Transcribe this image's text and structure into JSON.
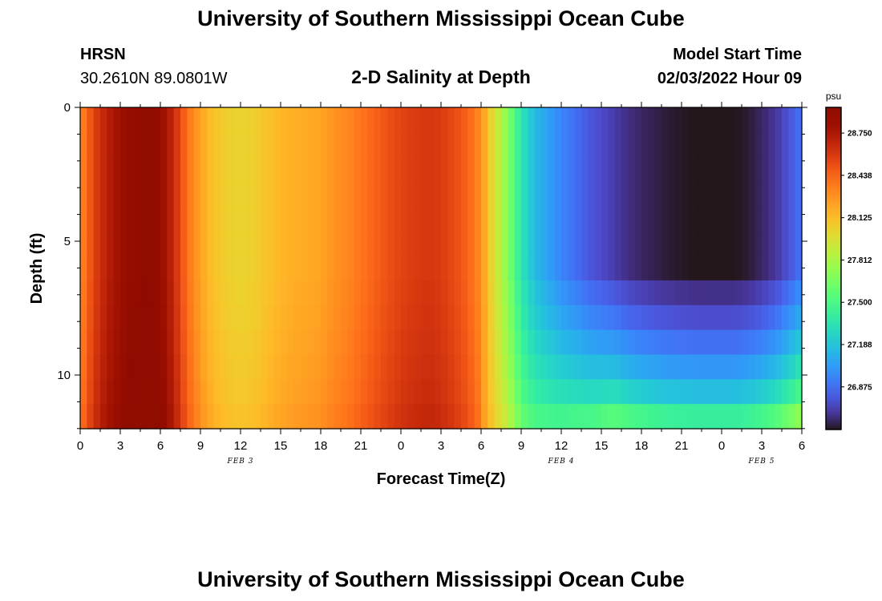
{
  "page": {
    "title_top": "University of Southern Mississippi Ocean Cube",
    "title_bottom": "University of Southern Mississippi Ocean Cube",
    "station": "HRSN",
    "coordinates": "30.2610N  89.0801W",
    "subtitle": "2-D Salinity at Depth",
    "model_start_label": "Model Start Time",
    "model_start_value": "02/03/2022 Hour 09"
  },
  "chart_data": {
    "type": "heatmap",
    "title": "2-D Salinity at Depth",
    "xlabel": "Forecast Time(Z)",
    "ylabel": "Depth (ft)",
    "x_tick_labels": [
      "0",
      "3",
      "6",
      "9",
      "12",
      "15",
      "18",
      "21",
      "0",
      "3",
      "6",
      "9",
      "12",
      "15",
      "18",
      "21",
      "0",
      "3",
      "6"
    ],
    "x_range_hours": [
      0,
      54
    ],
    "date_labels": [
      {
        "label": "FEB 3",
        "hour": 12
      },
      {
        "label": "FEB 4",
        "hour": 36
      },
      {
        "label": "FEB 5",
        "hour": 51
      }
    ],
    "y_ticks": [
      0,
      5,
      10
    ],
    "y_range_ft": [
      0,
      12
    ],
    "y_inverted": true,
    "colorbar": {
      "unit": "psu",
      "ticks": [
        28.75,
        28.438,
        28.125,
        27.812,
        27.5,
        27.188,
        26.875
      ],
      "tick_labels": [
        "28.750",
        "28.438",
        "28.125",
        "27.812",
        "27.500",
        "27.188",
        "26.875"
      ],
      "range": [
        26.56,
        28.94
      ],
      "colormap": "turbo"
    },
    "time_profile_hours": [
      0,
      1,
      2,
      3,
      4,
      5,
      6,
      7,
      8,
      9,
      10,
      11,
      12,
      13,
      14,
      15,
      16,
      17,
      18,
      19,
      20,
      21,
      22,
      23,
      24,
      25,
      26,
      27,
      28,
      29,
      30,
      31,
      32,
      33,
      34,
      35,
      36,
      37,
      38,
      39,
      40,
      41,
      42,
      43,
      44,
      45,
      46,
      47,
      48,
      49,
      50,
      51,
      52,
      53,
      54
    ],
    "surface_salinity_psu": [
      28.3,
      28.55,
      28.7,
      28.8,
      28.88,
      28.9,
      28.85,
      28.65,
      28.4,
      28.22,
      28.1,
      28.05,
      28.03,
      28.05,
      28.1,
      28.15,
      28.18,
      28.2,
      28.22,
      28.28,
      28.32,
      28.38,
      28.44,
      28.5,
      28.55,
      28.58,
      28.6,
      28.58,
      28.52,
      28.44,
      28.3,
      27.95,
      27.7,
      27.35,
      27.15,
      27.05,
      26.95,
      26.88,
      26.8,
      26.75,
      26.7,
      26.65,
      26.62,
      26.6,
      26.58,
      26.57,
      26.56,
      26.56,
      26.56,
      26.56,
      26.58,
      26.62,
      26.68,
      26.78,
      26.9
    ],
    "depth_layers_ft": [
      0,
      1,
      2,
      3,
      4,
      5,
      6,
      7,
      8,
      9,
      10,
      11,
      12
    ],
    "bottom_layer_offsets_psu": [
      0,
      0,
      0,
      0,
      0,
      0,
      0,
      0.1,
      0.2,
      0.32,
      0.45,
      0.6,
      0.85
    ]
  }
}
